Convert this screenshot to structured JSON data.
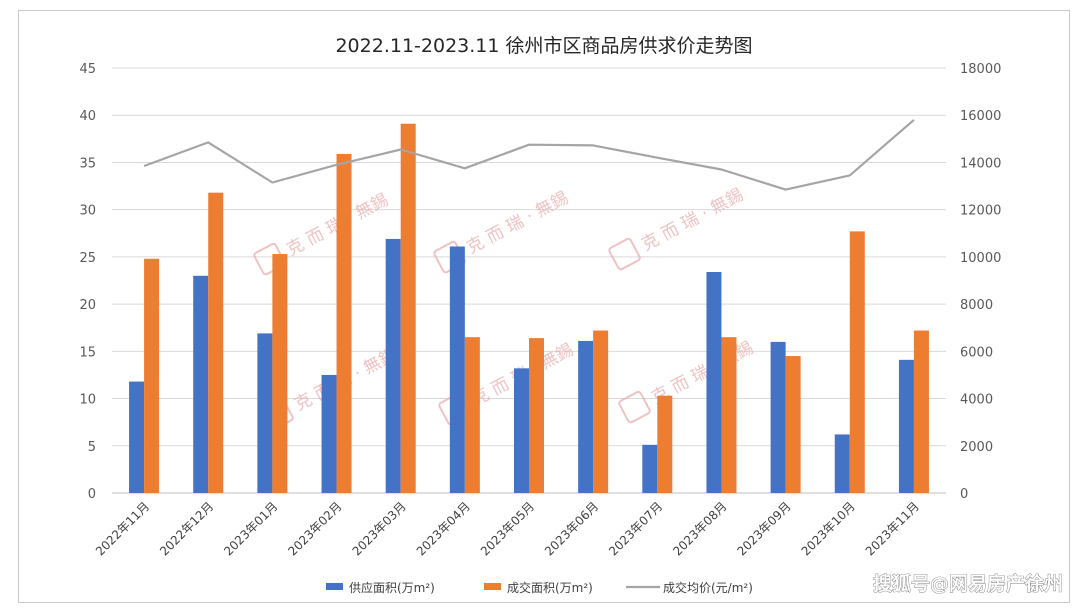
{
  "chart_data": {
    "type": "bar",
    "title": "2022.11-2023.11 徐州市区商品房供求价走势图",
    "categories": [
      "2022年11月",
      "2022年12月",
      "2023年01月",
      "2023年02月",
      "2023年03月",
      "2023年04月",
      "2023年05月",
      "2023年06月",
      "2023年07月",
      "2023年08月",
      "2023年09月",
      "2023年10月",
      "2023年11月"
    ],
    "series": [
      {
        "name": "供应面积(万m²)",
        "kind": "bar",
        "axis": "left",
        "color": "#4472c4",
        "values": [
          11.8,
          23.0,
          16.9,
          12.5,
          26.9,
          26.1,
          13.2,
          16.1,
          5.1,
          23.4,
          16.0,
          6.2,
          14.1
        ]
      },
      {
        "name": "成交面积(万m²)",
        "kind": "bar",
        "axis": "left",
        "color": "#ed7d31",
        "values": [
          24.8,
          31.8,
          25.3,
          35.9,
          39.1,
          16.5,
          16.4,
          17.2,
          10.3,
          16.5,
          14.5,
          27.7,
          17.2
        ]
      },
      {
        "name": "成交均价(元/m²)",
        "kind": "line",
        "axis": "right",
        "color": "#a5a5a5",
        "values": [
          13850,
          14850,
          13150,
          13900,
          14550,
          13750,
          14750,
          14720,
          14200,
          13700,
          12850,
          13450,
          15800
        ]
      }
    ],
    "y_left": {
      "min": 0,
      "max": 45,
      "step": 5
    },
    "y_right": {
      "min": 0,
      "max": 18000,
      "step": 2000
    },
    "grid": true,
    "legend_position": "bottom"
  },
  "watermark": {
    "text": "克 而 瑞 · 無錫",
    "seal": "克而瑞"
  },
  "footer": {
    "text": "搜狐号@网易房产徐州"
  }
}
